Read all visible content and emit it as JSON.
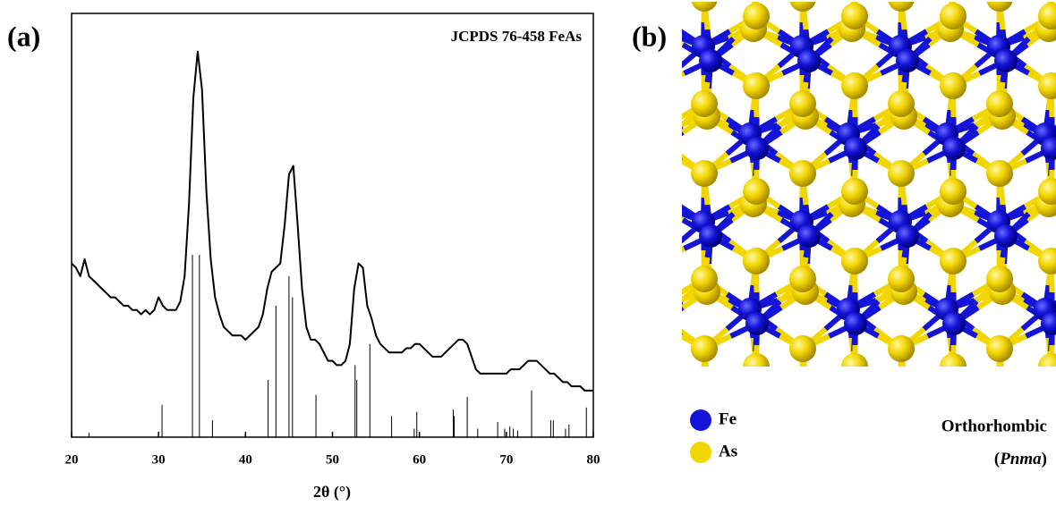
{
  "chart_data": {
    "type": "line",
    "panel_label": "(a)",
    "xlabel": "2θ (°)",
    "xlim": [
      20,
      80
    ],
    "xticks": [
      20,
      30,
      40,
      50,
      60,
      70,
      80
    ],
    "ylim": [
      0,
      100
    ],
    "series": [
      {
        "type": "line",
        "color": "#000000",
        "x": [
          20,
          20.5,
          21,
          21.5,
          22,
          22.5,
          23,
          23.5,
          24,
          24.5,
          25,
          25.5,
          26,
          26.5,
          27,
          27.5,
          28,
          28.5,
          29,
          29.5,
          30,
          30.5,
          31,
          31.5,
          32,
          32.5,
          33,
          33.5,
          34,
          34.5,
          35,
          35.5,
          36,
          36.5,
          37,
          37.5,
          38,
          38.5,
          39,
          39.5,
          40,
          40.5,
          41,
          41.5,
          42,
          42.5,
          43,
          43.5,
          44,
          44.5,
          45,
          45.5,
          46,
          46.5,
          47,
          47.5,
          48,
          48.5,
          49,
          49.5,
          50,
          50.5,
          51,
          51.5,
          52,
          52.5,
          53,
          53.5,
          54,
          54.5,
          55,
          55.5,
          56,
          56.5,
          57,
          57.5,
          58,
          58.5,
          59,
          59.5,
          60,
          60.5,
          61,
          61.5,
          62,
          62.5,
          63,
          63.5,
          64,
          64.5,
          65,
          65.5,
          66,
          66.5,
          67,
          67.5,
          68,
          68.5,
          69,
          69.5,
          70,
          70.5,
          71,
          71.5,
          72,
          72.5,
          73,
          73.5,
          74,
          74.5,
          75,
          75.5,
          76,
          76.5,
          77,
          77.5,
          78,
          78.5,
          79,
          79.5,
          80
        ],
        "values": [
          41,
          40,
          38,
          42,
          38,
          37,
          36,
          35,
          34,
          33,
          33,
          32,
          31,
          31,
          30,
          30,
          29,
          30,
          29,
          30,
          33,
          31,
          30,
          30,
          30,
          32,
          38,
          55,
          80,
          91,
          82,
          58,
          42,
          33,
          29,
          26,
          25,
          24,
          24,
          24,
          23,
          24,
          25,
          26,
          29,
          35,
          39,
          40,
          41,
          50,
          62,
          64,
          50,
          35,
          26,
          23,
          23,
          22,
          20,
          18,
          18,
          17,
          17,
          18,
          22,
          35,
          41,
          40,
          31,
          28,
          24,
          22,
          21,
          20,
          20,
          20,
          20,
          21,
          21,
          22,
          22,
          21,
          20,
          19,
          19,
          19,
          20,
          21,
          22,
          23,
          23,
          22,
          19,
          16,
          15,
          15,
          15,
          15,
          15,
          15,
          15,
          16,
          16,
          16,
          17,
          18,
          18,
          18,
          17,
          16,
          15,
          15,
          14,
          13,
          13,
          12,
          12,
          12,
          11,
          11,
          11
        ]
      },
      {
        "type": "stick",
        "name": "JCPDS 76-458 FeAs",
        "color": "#000000",
        "x": [
          22,
          30.4,
          33.9,
          34.7,
          36.2,
          42.6,
          43.5,
          45.0,
          45.4,
          48.1,
          52.6,
          52.8,
          54.3,
          56.8,
          59.4,
          59.7,
          63.9,
          64.0,
          65.5,
          66.7,
          69.0,
          69.8,
          70.4,
          70.8,
          71.3,
          72.9,
          75.1,
          75.4,
          76.8,
          77.2,
          79.2
        ],
        "values": [
          1,
          7.6,
          43,
          43,
          4,
          13.5,
          31,
          38,
          33,
          10,
          17,
          13.5,
          22,
          5,
          2,
          6,
          6.5,
          5,
          9.5,
          2,
          3.6,
          2,
          2.5,
          2,
          1.5,
          11,
          4,
          4,
          2,
          3,
          7
        ]
      }
    ]
  },
  "structure": {
    "panel_label": "(b)",
    "legend": [
      {
        "name": "Fe",
        "color": "#1414d8"
      },
      {
        "name": "As",
        "color": "#f2d600"
      }
    ],
    "caption": "Orthorhombic",
    "space_group": [
      "(",
      "Pnma",
      ")"
    ]
  }
}
